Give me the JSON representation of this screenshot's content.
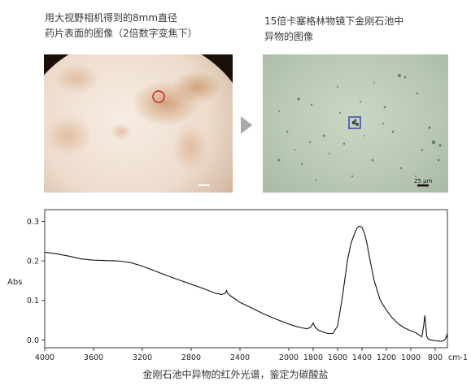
{
  "captions": {
    "left": "用大视野相机得到的8mm直径\n药片表面的图像（2倍数字变焦下）",
    "right": "15倍卡塞格林物镜下金刚石池中\n异物的图像"
  },
  "scale_bar_label": "25 μm",
  "colors": {
    "spectrum_line": "#111111",
    "highlight_circle": "#d11a1a",
    "highlight_square": "#2a3fa8"
  },
  "chart_data": {
    "type": "line",
    "title": "金刚石池中异物的红外光谱，鉴定为碳酸盐",
    "xlabel": "cm-1",
    "ylabel": "Abs",
    "xlim": [
      4000,
      700
    ],
    "ylim": [
      -0.02,
      0.33
    ],
    "x_ticks": [
      4000,
      3600,
      3200,
      2800,
      2400,
      2000,
      1800,
      1600,
      1400,
      1200,
      1000,
      800
    ],
    "x_tick_labels": [
      "4000",
      "3600",
      "3200",
      "2800",
      "2400",
      "2000",
      "1800",
      "1600",
      "1400",
      "1200",
      "1000",
      "800"
    ],
    "x_unit_label": "cm-1",
    "y_ticks": [
      0.0,
      0.1,
      0.2,
      0.3
    ],
    "y_tick_labels": [
      "0.0",
      "0.1",
      "0.2",
      "0.3"
    ],
    "grid": false,
    "series": [
      {
        "x": [
          4000,
          3900,
          3800,
          3700,
          3600,
          3500,
          3400,
          3300,
          3200,
          3100,
          3000,
          2900,
          2800,
          2700,
          2600,
          2550,
          2520,
          2510,
          2500,
          2480,
          2400,
          2300,
          2200,
          2100,
          2000,
          1950,
          1900,
          1850,
          1820,
          1800,
          1790,
          1760,
          1720,
          1680,
          1640,
          1600,
          1560,
          1520,
          1490,
          1460,
          1440,
          1420,
          1400,
          1380,
          1360,
          1330,
          1300,
          1250,
          1200,
          1150,
          1100,
          1050,
          1000,
          960,
          930,
          910,
          895,
          885,
          878,
          870,
          860,
          840,
          800,
          760,
          730,
          715,
          705,
          700
        ],
        "y": [
          0.222,
          0.218,
          0.212,
          0.205,
          0.202,
          0.201,
          0.2,
          0.196,
          0.187,
          0.175,
          0.163,
          0.152,
          0.141,
          0.13,
          0.118,
          0.115,
          0.118,
          0.125,
          0.118,
          0.112,
          0.095,
          0.08,
          0.065,
          0.052,
          0.04,
          0.035,
          0.031,
          0.028,
          0.032,
          0.043,
          0.035,
          0.025,
          0.02,
          0.016,
          0.016,
          0.035,
          0.11,
          0.2,
          0.245,
          0.27,
          0.284,
          0.288,
          0.285,
          0.27,
          0.245,
          0.195,
          0.15,
          0.1,
          0.075,
          0.055,
          0.04,
          0.03,
          0.023,
          0.018,
          0.012,
          0.008,
          0.035,
          0.062,
          0.038,
          0.01,
          0.003,
          0.0,
          -0.002,
          -0.004,
          -0.002,
          0.003,
          0.012,
          0.005
        ]
      }
    ]
  }
}
